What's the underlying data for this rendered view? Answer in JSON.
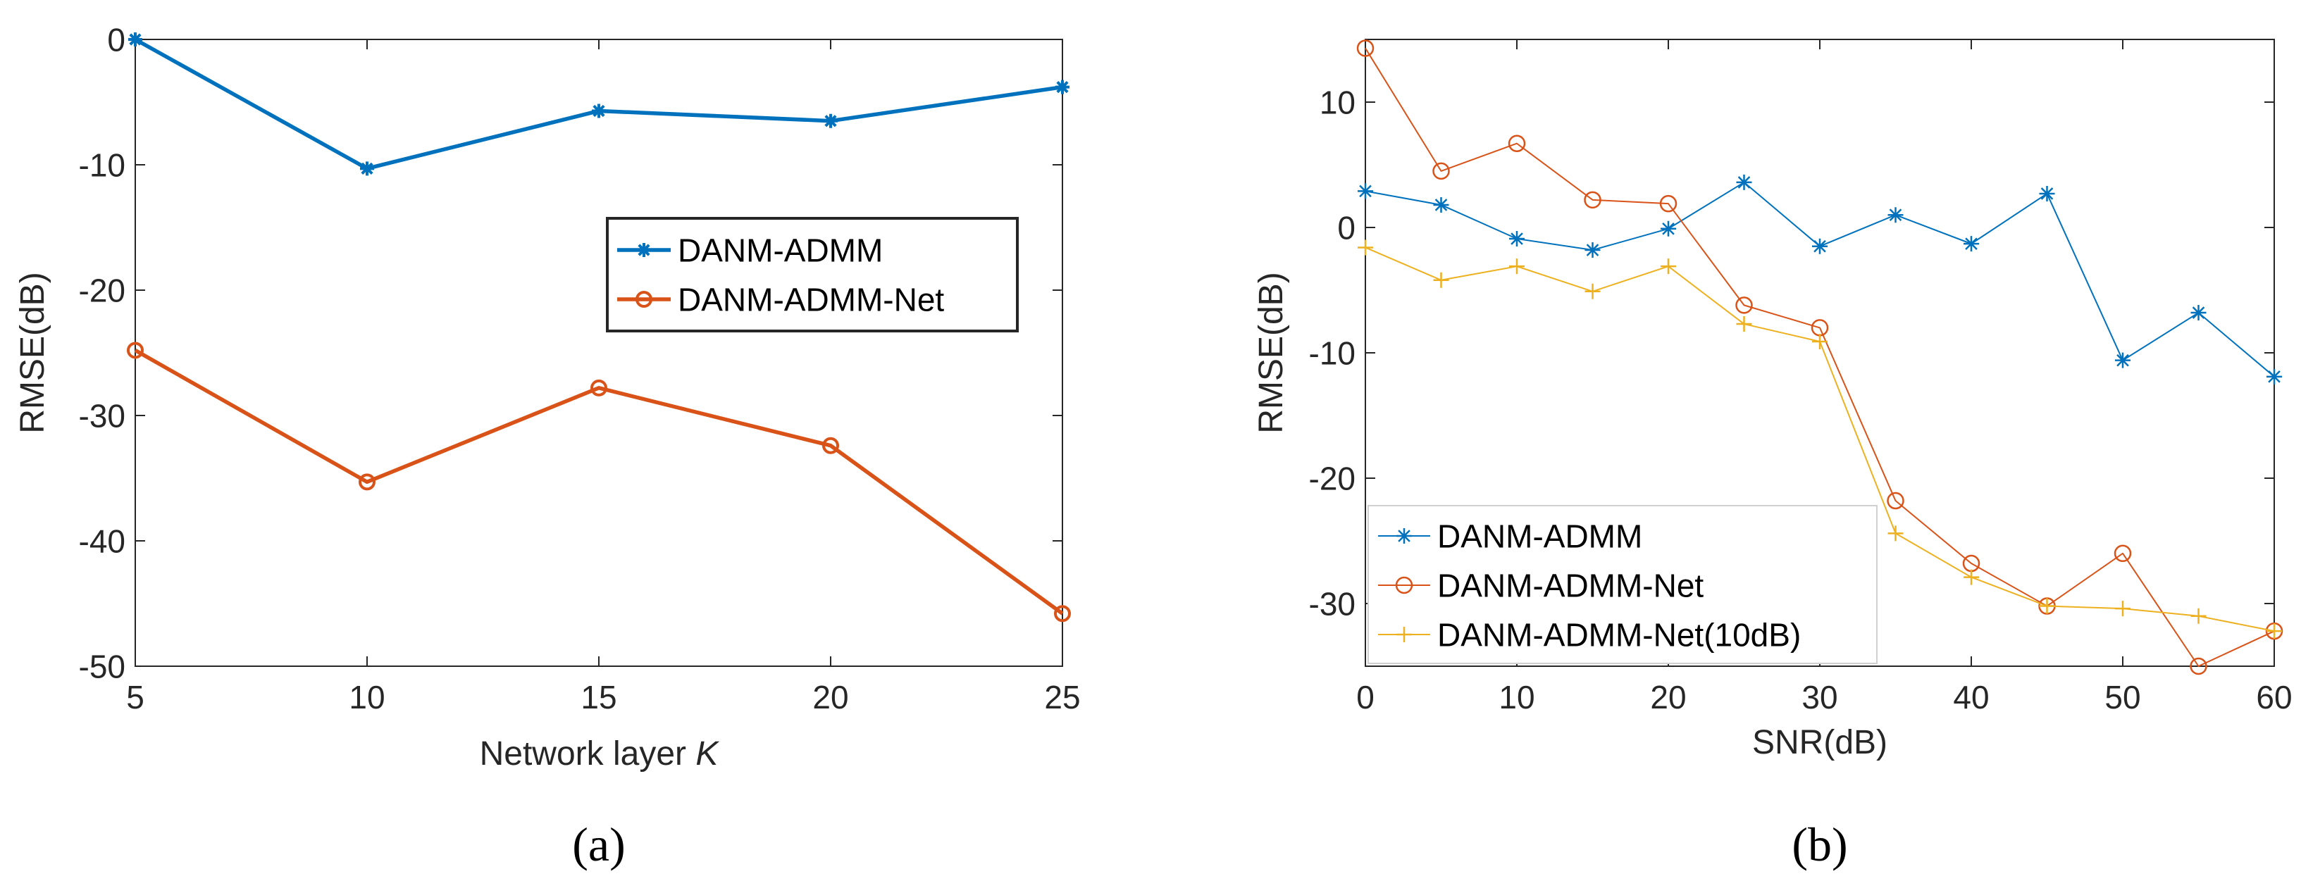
{
  "chart_data": [
    {
      "type": "line",
      "panel_label": "(a)",
      "xlabel": "Network layer",
      "xlabel_var": "K",
      "ylabel": "RMSE(dB)",
      "xlim": [
        5,
        25
      ],
      "ylim": [
        -50,
        0
      ],
      "xticks": [
        5,
        10,
        15,
        20,
        25
      ],
      "yticks": [
        -50,
        -40,
        -30,
        -20,
        -10,
        0
      ],
      "grid": false,
      "legend_position": "center-right",
      "x": [
        5,
        10,
        15,
        20,
        25
      ],
      "series": [
        {
          "name": "DANM-ADMM",
          "color": "#0072BD",
          "marker": "star",
          "values": [
            0,
            -10.3,
            -5.7,
            -6.5,
            -3.8
          ]
        },
        {
          "name": "DANM-ADMM-Net",
          "color": "#D95319",
          "marker": "circle",
          "values": [
            -24.8,
            -35.3,
            -27.8,
            -32.4,
            -45.8
          ]
        }
      ]
    },
    {
      "type": "line",
      "panel_label": "(b)",
      "xlabel": "SNR(dB)",
      "ylabel": "RMSE(dB)",
      "xlim": [
        0,
        60
      ],
      "ylim": [
        -35,
        15
      ],
      "xticks": [
        0,
        10,
        20,
        30,
        40,
        50,
        60
      ],
      "yticks": [
        -30,
        -20,
        -10,
        0,
        10
      ],
      "grid": false,
      "legend_position": "bottom-left",
      "x": [
        0,
        5,
        10,
        15,
        20,
        25,
        30,
        35,
        40,
        45,
        50,
        55,
        60
      ],
      "series": [
        {
          "name": "DANM-ADMM",
          "color": "#0072BD",
          "marker": "asterisk",
          "values": [
            2.9,
            1.8,
            -0.9,
            -1.8,
            -0.1,
            3.6,
            -1.5,
            1.0,
            -1.3,
            2.7,
            -10.6,
            -6.8,
            -11.9
          ]
        },
        {
          "name": "DANM-ADMM-Net",
          "color": "#D95319",
          "marker": "circle",
          "values": [
            14.3,
            4.5,
            6.7,
            2.2,
            1.9,
            -6.2,
            -8.0,
            -21.8,
            -26.8,
            -30.2,
            -26.0,
            -35.0,
            -32.2
          ]
        },
        {
          "name": "DANM-ADMM-Net(10dB)",
          "color": "#EDB120",
          "marker": "plus",
          "values": [
            -1.6,
            -4.2,
            -3.1,
            -5.1,
            -3.1,
            -7.7,
            -9.1,
            -24.4,
            -27.9,
            -30.2,
            -30.4,
            -31.0,
            -32.2
          ]
        }
      ]
    }
  ]
}
